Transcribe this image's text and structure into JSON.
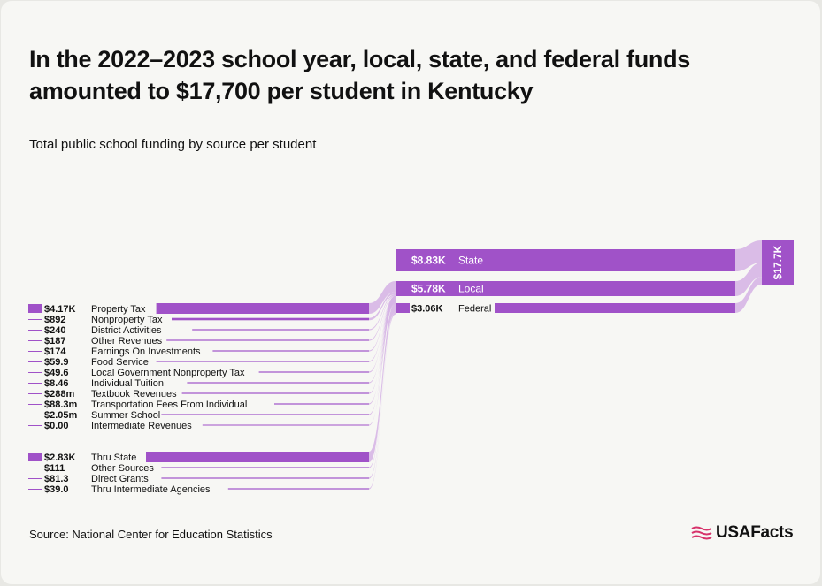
{
  "header": {
    "title": "In the 2022–2023 school year, local, state, and federal funds amounted to $17,700 per student in Kentucky",
    "subtitle": "Total public school funding by source per student"
  },
  "footer": {
    "source": "Source: National Center for Education Statistics",
    "logo_text": "USAFacts"
  },
  "colors": {
    "node": "#a052c8",
    "link": "#d6b5e6",
    "text": "#111111"
  },
  "chart_data": {
    "type": "sankey",
    "title": "In the 2022–2023 school year, local, state, and federal funds amounted to $17,700 per student in Kentucky",
    "subtitle": "Total public school funding by source per student",
    "total": {
      "name": "Total",
      "value": 17700,
      "label": "$17.7K"
    },
    "sources": [
      {
        "name": "State",
        "value": 8830,
        "label": "$8.83K"
      },
      {
        "name": "Local",
        "value": 5780,
        "label": "$5.78K"
      },
      {
        "name": "Federal",
        "value": 3060,
        "label": "$3.06K"
      }
    ],
    "groups": [
      {
        "target": "Local",
        "items": [
          {
            "name": "Property Tax",
            "value": 4170,
            "label": "$4.17K"
          },
          {
            "name": "Nonproperty Tax",
            "value": 892,
            "label": "$892"
          },
          {
            "name": "District Activities",
            "value": 240,
            "label": "$240"
          },
          {
            "name": "Other Revenues",
            "value": 187,
            "label": "$187"
          },
          {
            "name": "Earnings On Investments",
            "value": 174,
            "label": "$174"
          },
          {
            "name": "Food Service",
            "value": 59.9,
            "label": "$59.9"
          },
          {
            "name": "Local Government Nonproperty Tax",
            "value": 49.6,
            "label": "$49.6"
          },
          {
            "name": "Individual Tuition",
            "value": 8.46,
            "label": "$8.46"
          },
          {
            "name": "Textbook Revenues",
            "value": 0.288,
            "label": "$288m"
          },
          {
            "name": "Transportation Fees From Individual",
            "value": 0.0883,
            "label": "$88.3m"
          },
          {
            "name": "Summer School",
            "value": 0.00205,
            "label": "$2.05m"
          },
          {
            "name": "Intermediate Revenues",
            "value": 0,
            "label": "$0.00"
          }
        ]
      },
      {
        "target": "Federal",
        "items": [
          {
            "name": "Thru State",
            "value": 2830,
            "label": "$2.83K"
          },
          {
            "name": "Other Sources",
            "value": 111,
            "label": "$111"
          },
          {
            "name": "Direct Grants",
            "value": 81.3,
            "label": "$81.3"
          },
          {
            "name": "Thru Intermediate Agencies",
            "value": 39.0,
            "label": "$39.0"
          }
        ]
      }
    ]
  }
}
